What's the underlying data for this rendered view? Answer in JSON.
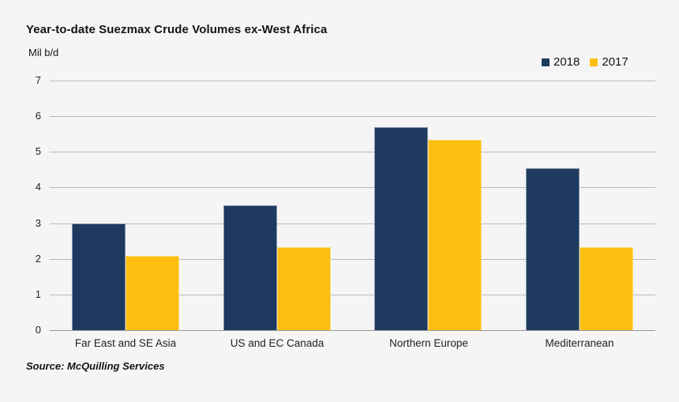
{
  "chart": {
    "title": "Year-to-date Suezmax Crude Volumes ex-West Africa",
    "units_label": "Mil b/d",
    "source": "Source: McQuilling Services"
  },
  "chart_data": {
    "type": "bar",
    "title": "Year-to-date Suezmax Crude Volumes ex-West Africa",
    "ylabel": "Mil b/d",
    "xlabel": "",
    "categories": [
      "Far East and SE Asia",
      "US and EC Canada",
      "Northern Europe",
      "Mediterranean"
    ],
    "series": [
      {
        "name": "2018",
        "color": "#1e3a5f",
        "values": [
          3.0,
          3.5,
          5.7,
          4.55
        ]
      },
      {
        "name": "2017",
        "color": "#fcbf10",
        "values": [
          2.08,
          2.33,
          5.33,
          2.33
        ]
      }
    ],
    "ylim": [
      0,
      7
    ],
    "yticks": [
      0,
      1,
      2,
      3,
      4,
      5,
      6,
      7
    ],
    "grid": true,
    "legend_position": "top-right",
    "source": "Source: McQuilling Services"
  },
  "colors": {
    "background": "#f5f5f6",
    "gridline": "#b9b9b9",
    "axis_line": "#979797",
    "text": "#141414",
    "series_2018": "#1e3a5f",
    "series_2017": "#fcbf10"
  }
}
